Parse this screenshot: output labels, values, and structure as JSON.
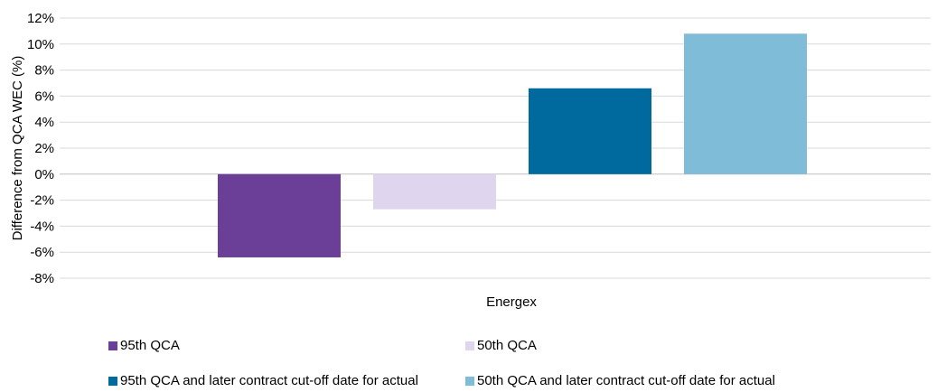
{
  "chart_data": {
    "type": "bar",
    "categories": [
      "Energex"
    ],
    "xlabel": "Energex",
    "ylabel": "Difference from QCA WEC (%)",
    "ylim": [
      -8,
      12
    ],
    "yticks": [
      12,
      10,
      8,
      6,
      4,
      2,
      0,
      -2,
      -4,
      -6,
      -8
    ],
    "ytick_labels": [
      "12%",
      "10%",
      "8%",
      "6%",
      "4%",
      "2%",
      "0%",
      "-2%",
      "-4%",
      "-6%",
      "-8%"
    ],
    "grid": true,
    "legend_position": "bottom",
    "series": [
      {
        "name": "95th QCA",
        "values": [
          -6.4
        ],
        "color": "#6b3f98"
      },
      {
        "name": "50th QCA",
        "values": [
          -2.7
        ],
        "color": "#e0d5ee"
      },
      {
        "name": "95th QCA and later contract cut-off date for actual",
        "values": [
          6.6
        ],
        "color": "#006a9e"
      },
      {
        "name": "50th QCA and later contract cut-off date for actual",
        "values": [
          10.8
        ],
        "color": "#7fbcd8"
      }
    ]
  }
}
